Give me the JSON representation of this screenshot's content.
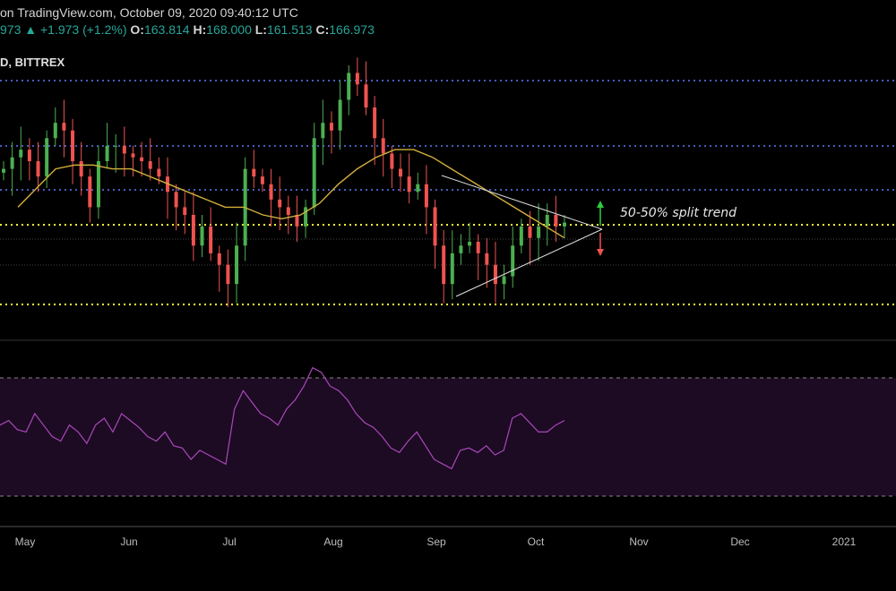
{
  "header": {
    "line1": "on TradingView.com, October 09, 2020 09:40:12 UTC",
    "last_fragment": "973",
    "change": "▲ +1.973 (+1.2%)",
    "o_label": "O:",
    "o_value": "163.814",
    "h_label": "H:",
    "h_value": "168.000",
    "l_label": "L:",
    "l_value": "161.513",
    "c_label": "C:",
    "c_value": "166.973"
  },
  "symbol_label": "D, BITTREX",
  "annotation": "50-50% split trend",
  "x_ticks": [
    "May",
    "Jun",
    "Jul",
    "Aug",
    "Sep",
    "Oct",
    "Nov",
    "Dec",
    "2021"
  ],
  "colors": {
    "up": "#26a69a",
    "up_candle": "#4caf50",
    "down_candle": "#ef5350",
    "ma": "#d4b03c",
    "blue_level": "#5c7cfa",
    "yellow_level": "#ffff33",
    "rsi_line": "#ab47bc",
    "rsi_band": "#1a0a1e"
  },
  "chart_data": {
    "type": "candlestick",
    "series_price": {
      "unit": "price",
      "approx_close": [
        160,
        163,
        165,
        162,
        158,
        168,
        172,
        170,
        162,
        158,
        150,
        162,
        166,
        166,
        164,
        163,
        162,
        160,
        158,
        154,
        150,
        148,
        140,
        145,
        138,
        135,
        130,
        140,
        160,
        158,
        156,
        152,
        150,
        148,
        145,
        150,
        168,
        172,
        170,
        178,
        185,
        182,
        176,
        168,
        164,
        160,
        158,
        154,
        156,
        150,
        140,
        130,
        138,
        140,
        141,
        138,
        135,
        130,
        132,
        140,
        145,
        142,
        145,
        148,
        145,
        146
      ],
      "moving_average": [
        150,
        155,
        160,
        161,
        161,
        160,
        160,
        158,
        156,
        154,
        152,
        150,
        150,
        148,
        147,
        148,
        151,
        156,
        160,
        163,
        165,
        165,
        163,
        160,
        157,
        154,
        151,
        148,
        145,
        142
      ]
    },
    "horizontal_levels": [
      {
        "style": "dotted",
        "color": "blue"
      },
      {
        "style": "dotted",
        "color": "blue"
      },
      {
        "style": "dotted",
        "color": "blue"
      },
      {
        "style": "dotted",
        "color": "yellow"
      },
      {
        "style": "dotted",
        "color": "yellow"
      }
    ],
    "triangle_pattern": "symmetrical triangle converging toward late October",
    "annotation": "50-50% split trend",
    "rsi": {
      "band": [
        30,
        70
      ],
      "values": [
        55,
        57,
        53,
        52,
        60,
        55,
        50,
        48,
        55,
        52,
        47,
        55,
        58,
        52,
        60,
        57,
        54,
        50,
        48,
        52,
        46,
        45,
        40,
        44,
        42,
        40,
        38,
        62,
        70,
        65,
        60,
        58,
        55,
        62,
        66,
        72,
        80,
        78,
        72,
        70,
        66,
        60,
        56,
        54,
        50,
        45,
        43,
        48,
        52,
        46,
        40,
        38,
        36,
        44,
        45,
        43,
        46,
        42,
        44,
        58,
        60,
        56,
        52,
        52,
        55,
        57
      ]
    },
    "x_ticks": [
      "May",
      "Jun",
      "Jul",
      "Aug",
      "Sep",
      "Oct",
      "Nov",
      "Dec",
      "2021"
    ]
  }
}
